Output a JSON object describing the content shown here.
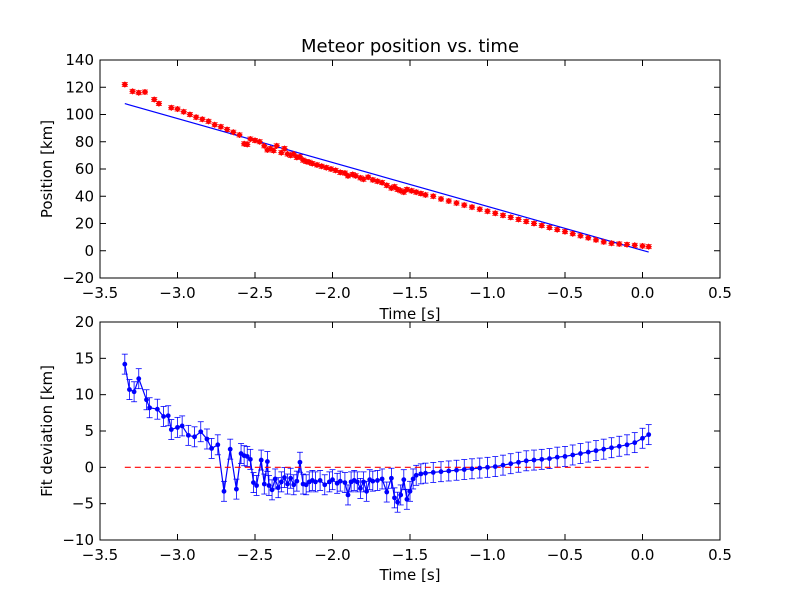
{
  "chart_data": [
    {
      "type": "scatter",
      "title": "Meteor position vs. time",
      "xlabel": "Time [s]",
      "ylabel": "Position [km]",
      "xlim": [
        -3.5,
        0.5
      ],
      "ylim": [
        -20,
        140
      ],
      "xticks": [
        "−3.5",
        "−3.0",
        "−2.5",
        "−2.0",
        "−1.5",
        "−1.0",
        "−0.5",
        "0.0",
        "0.5"
      ],
      "yticks": [
        "−20",
        "0",
        "20",
        "40",
        "60",
        "80",
        "100",
        "120",
        "140"
      ],
      "grid": false,
      "series": [
        {
          "color": "#ff0000",
          "marker": "diamond",
          "style": "points with error bars",
          "x": [
            -3.34,
            -3.29,
            -3.25,
            -3.21,
            -3.15,
            -3.12,
            -3.04,
            -3.0,
            -2.96,
            -2.92,
            -2.88,
            -2.84,
            -2.8,
            -2.76,
            -2.72,
            -2.68,
            -2.64,
            -2.6,
            -2.57,
            -2.55,
            -2.53,
            -2.5,
            -2.47,
            -2.44,
            -2.42,
            -2.4,
            -2.38,
            -2.36,
            -2.33,
            -2.31,
            -2.29,
            -2.27,
            -2.25,
            -2.23,
            -2.21,
            -2.19,
            -2.17,
            -2.15,
            -2.13,
            -2.1,
            -2.07,
            -2.04,
            -2.01,
            -1.98,
            -1.95,
            -1.92,
            -1.9,
            -1.87,
            -1.85,
            -1.82,
            -1.8,
            -1.77,
            -1.74,
            -1.71,
            -1.68,
            -1.65,
            -1.62,
            -1.6,
            -1.58,
            -1.56,
            -1.54,
            -1.52,
            -1.49,
            -1.46,
            -1.43,
            -1.4,
            -1.35,
            -1.3,
            -1.25,
            -1.2,
            -1.15,
            -1.1,
            -1.05,
            -1.0,
            -0.95,
            -0.9,
            -0.85,
            -0.8,
            -0.75,
            -0.7,
            -0.65,
            -0.6,
            -0.55,
            -0.5,
            -0.45,
            -0.4,
            -0.35,
            -0.3,
            -0.25,
            -0.2,
            -0.15,
            -0.1,
            -0.05,
            0.0,
            0.04
          ],
          "y": [
            122,
            117,
            116,
            116.5,
            111,
            108,
            105,
            104,
            102,
            100,
            98,
            96.5,
            95,
            92.5,
            91,
            89,
            87,
            85,
            78.5,
            78,
            82,
            81,
            80,
            77,
            74,
            75,
            73.5,
            77,
            72,
            75,
            71,
            70,
            71,
            68.5,
            69,
            66.5,
            65.5,
            65,
            64,
            63,
            62,
            61,
            60,
            59,
            57.5,
            57,
            55,
            56,
            55,
            53.5,
            52.5,
            54,
            52,
            51,
            50,
            48,
            46,
            47,
            45,
            44,
            43,
            45,
            44,
            43,
            42,
            41,
            40,
            38,
            36.5,
            35,
            33.5,
            32,
            30.5,
            29,
            27.5,
            26,
            24.5,
            23,
            21.5,
            20,
            18.5,
            17,
            15.5,
            14,
            12.5,
            11,
            9.5,
            8,
            6.5,
            5.5,
            5,
            4.5,
            4,
            3.5,
            3
          ]
        },
        {
          "color": "#0000ff",
          "style": "line",
          "x": [
            -3.34,
            0.04
          ],
          "y": [
            108,
            -1
          ]
        }
      ]
    },
    {
      "type": "line",
      "title": "",
      "xlabel": "Time [s]",
      "ylabel": "Fit deviation [km]",
      "xlim": [
        -3.5,
        0.5
      ],
      "ylim": [
        -10,
        20
      ],
      "xticks": [
        "−3.5",
        "−3.0",
        "−2.5",
        "−2.0",
        "−1.5",
        "−1.0",
        "−0.5",
        "0.0",
        "0.5"
      ],
      "yticks": [
        "−10",
        "−5",
        "0",
        "5",
        "10",
        "15",
        "20"
      ],
      "grid": false,
      "series": [
        {
          "color": "#0000ff",
          "marker": "circle",
          "style": "line with error bars",
          "x": [
            -3.34,
            -3.31,
            -3.28,
            -3.25,
            -3.2,
            -3.18,
            -3.13,
            -3.09,
            -3.06,
            -3.04,
            -3.0,
            -2.97,
            -2.93,
            -2.89,
            -2.85,
            -2.81,
            -2.78,
            -2.74,
            -2.7,
            -2.66,
            -2.62,
            -2.59,
            -2.57,
            -2.55,
            -2.53,
            -2.51,
            -2.49,
            -2.46,
            -2.44,
            -2.42,
            -2.41,
            -2.39,
            -2.37,
            -2.35,
            -2.33,
            -2.31,
            -2.29,
            -2.27,
            -2.25,
            -2.23,
            -2.21,
            -2.19,
            -2.17,
            -2.15,
            -2.13,
            -2.11,
            -2.08,
            -2.05,
            -2.02,
            -2.0,
            -1.97,
            -1.95,
            -1.92,
            -1.9,
            -1.88,
            -1.86,
            -1.84,
            -1.82,
            -1.8,
            -1.78,
            -1.76,
            -1.74,
            -1.71,
            -1.68,
            -1.65,
            -1.62,
            -1.6,
            -1.58,
            -1.56,
            -1.54,
            -1.52,
            -1.5,
            -1.48,
            -1.46,
            -1.43,
            -1.4,
            -1.35,
            -1.3,
            -1.25,
            -1.2,
            -1.15,
            -1.1,
            -1.05,
            -1.0,
            -0.95,
            -0.9,
            -0.85,
            -0.8,
            -0.75,
            -0.7,
            -0.65,
            -0.6,
            -0.55,
            -0.5,
            -0.45,
            -0.4,
            -0.35,
            -0.3,
            -0.25,
            -0.2,
            -0.15,
            -0.1,
            -0.05,
            0.0,
            0.04
          ],
          "y": [
            14.2,
            10.7,
            10.4,
            12.2,
            9.3,
            8.2,
            8.0,
            7.0,
            7.1,
            5.2,
            5.5,
            5.7,
            4.4,
            4.2,
            4.9,
            3.9,
            2.6,
            3.1,
            -3.3,
            2.5,
            -3.0,
            1.9,
            1.6,
            1.5,
            1.1,
            -2.1,
            -2.5,
            1.0,
            -2.3,
            0.8,
            -2.5,
            -3.1,
            -1.6,
            -2.8,
            -2.0,
            -1.4,
            -2.3,
            -1.5,
            -2.4,
            -1.9,
            0.7,
            -2.3,
            -2.4,
            -2.0,
            -1.8,
            -2.0,
            -1.8,
            -2.4,
            -2.0,
            -1.7,
            -2.2,
            -1.9,
            -2.1,
            -3.8,
            -2.0,
            -1.8,
            -2.0,
            -2.9,
            -2.0,
            -3.3,
            -1.7,
            -1.9,
            -1.8,
            -1.6,
            -3.4,
            -1.5,
            -4.2,
            -4.8,
            -3.8,
            -1.7,
            -4.4,
            -3.3,
            -1.6,
            -1.1,
            -0.9,
            -0.8,
            -0.7,
            -0.6,
            -0.5,
            -0.4,
            -0.3,
            -0.2,
            -0.1,
            0.0,
            0.1,
            0.3,
            0.5,
            0.7,
            0.9,
            1.0,
            1.1,
            1.2,
            1.4,
            1.5,
            1.7,
            1.9,
            2.1,
            2.3,
            2.5,
            2.7,
            2.9,
            3.1,
            3.4,
            4.0,
            4.5
          ]
        },
        {
          "color": "#ff0000",
          "style": "dashed line",
          "x": [
            -3.34,
            0.04
          ],
          "y": [
            0,
            0
          ]
        }
      ]
    }
  ]
}
